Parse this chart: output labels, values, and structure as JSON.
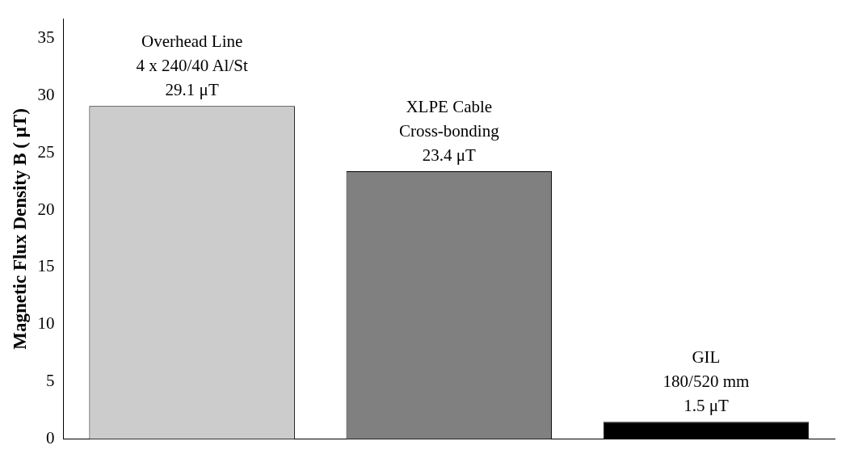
{
  "chart_data": {
    "type": "bar",
    "ylabel": "Magnetic Flux Density B ( μT)",
    "categories": [
      "Overhead Line\n4 x 240/40 Al/St",
      "XLPE Cable\nCross-bonding",
      "GIL\n180/520 mm"
    ],
    "values": [
      29.1,
      23.4,
      1.5
    ],
    "colors": [
      "#cccccc",
      "#808080",
      "#000000"
    ],
    "value_labels": [
      "29.1 μT",
      "23.4 μT",
      "1.5 μT"
    ],
    "ylim": [
      0,
      36.7
    ],
    "yticks": [
      0,
      5,
      10,
      15,
      20,
      25,
      30,
      35
    ],
    "grid": false,
    "legend": false
  }
}
